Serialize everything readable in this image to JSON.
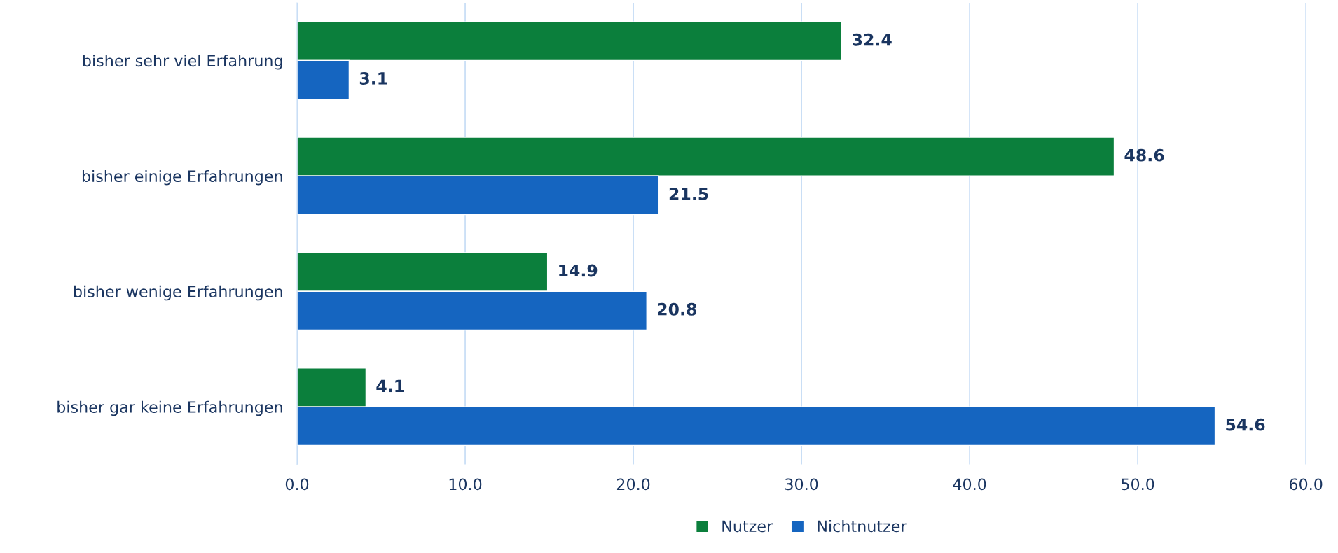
{
  "chart_data": {
    "type": "bar",
    "orientation": "horizontal",
    "categories": [
      "bisher sehr viel Erfahrung",
      "bisher einige Erfahrungen",
      "bisher wenige Erfahrungen",
      "bisher gar keine Erfahrungen"
    ],
    "series": [
      {
        "name": "Nutzer",
        "color": "#0b7f3c",
        "values": [
          32.4,
          48.6,
          14.9,
          4.1
        ]
      },
      {
        "name": "Nichtnutzer",
        "color": "#1565c0",
        "values": [
          3.1,
          21.5,
          20.8,
          54.6
        ]
      }
    ],
    "xlim": [
      0,
      60
    ],
    "xticks": [
      {
        "value": 0,
        "label": "0.0"
      },
      {
        "value": 10,
        "label": "10.0"
      },
      {
        "value": 20,
        "label": "20.0"
      },
      {
        "value": 30,
        "label": "30.0"
      },
      {
        "value": 40,
        "label": "40.0"
      },
      {
        "value": 50,
        "label": "50.0"
      },
      {
        "value": 60,
        "label": "60.0"
      }
    ],
    "grid": "x",
    "legend": "bottom",
    "data_labels": true
  }
}
